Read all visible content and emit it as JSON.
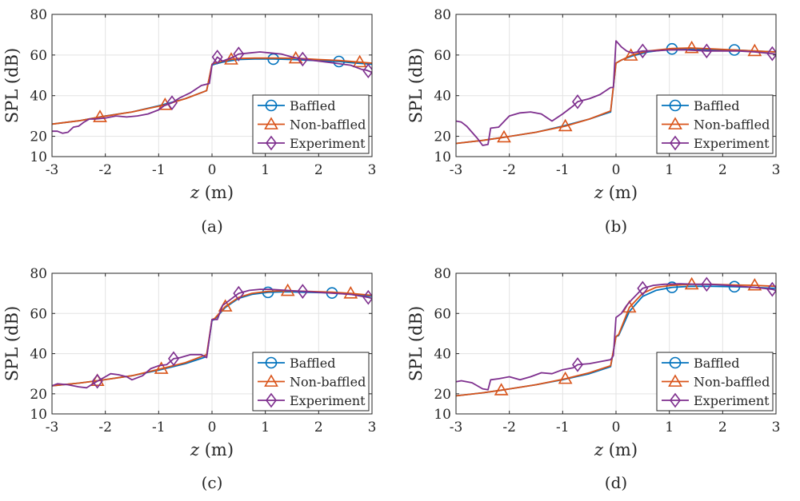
{
  "figure": {
    "series_colors": {
      "Baffled": "#0072bd",
      "Non-baffled": "#d95319",
      "Experiment": "#7e2f8e"
    },
    "markers": {
      "Baffled": "circle",
      "Non-baffled": "triangle",
      "Experiment": "diamond"
    }
  },
  "chart_data": [
    {
      "type": "line",
      "caption": "(a)",
      "xlabel": "z (m)",
      "ylabel": "SPL (dB)",
      "xlim": [
        -3,
        3
      ],
      "ylim": [
        10,
        80
      ],
      "xticks": [
        -3,
        -2,
        -1,
        0,
        1,
        2,
        3
      ],
      "yticks": [
        10,
        20,
        40,
        60,
        80
      ],
      "grid": true,
      "legend": "bottom-right",
      "series": [
        {
          "name": "Baffled",
          "x": [
            -3,
            -2.5,
            -2,
            -1.5,
            -1,
            -0.5,
            -0.1,
            0,
            0.05,
            0.2,
            0.35,
            0.5,
            0.8,
            1.15,
            1.5,
            2,
            2.38,
            2.7,
            3
          ],
          "y": [
            26,
            27.6,
            30,
            32,
            35,
            38.5,
            42.5,
            55,
            55.5,
            56.5,
            57.2,
            57.8,
            58,
            58,
            57.8,
            57.2,
            56.8,
            56,
            55.5
          ],
          "markers_x": [
            1.15,
            2.38
          ]
        },
        {
          "name": "Non-baffled",
          "x": [
            -3,
            -2.5,
            -2.1,
            -1.5,
            -0.88,
            -0.5,
            -0.1,
            0,
            0.05,
            0.2,
            0.35,
            0.5,
            0.8,
            1.15,
            1.57,
            2,
            2.38,
            2.77,
            3
          ],
          "y": [
            26,
            27.6,
            29.5,
            32,
            35.5,
            38.5,
            42.5,
            55.5,
            56,
            57,
            57.8,
            58.3,
            58.5,
            58.5,
            58.4,
            57.8,
            57.3,
            56.5,
            56
          ],
          "markers_x": [
            -2.1,
            -0.88,
            0.36,
            1.57,
            2.77
          ]
        },
        {
          "name": "Experiment",
          "x": [
            -3,
            -2.9,
            -2.8,
            -2.7,
            -2.6,
            -2.5,
            -2.4,
            -2.3,
            -2.2,
            -2,
            -1.8,
            -1.6,
            -1.4,
            -1.2,
            -1,
            -0.9,
            -0.75,
            -0.6,
            -0.4,
            -0.2,
            -0.05,
            0,
            0.1,
            0.2,
            0.3,
            0.4,
            0.5,
            0.7,
            0.9,
            1.1,
            1.3,
            1.5,
            1.7,
            2,
            2.3,
            2.6,
            2.8,
            2.9,
            3
          ],
          "y": [
            22.5,
            22.5,
            21.5,
            22,
            24.5,
            25,
            27,
            28.5,
            28.5,
            29,
            30,
            29.5,
            30,
            31,
            33,
            35,
            36.5,
            39,
            41.5,
            45,
            46,
            55,
            59,
            57,
            58,
            59,
            60.5,
            61,
            61.5,
            61,
            60.5,
            59,
            58,
            57,
            56,
            55,
            53,
            52.5,
            51.5
          ],
          "markers_x": [
            -0.75,
            0.1,
            0.5,
            1.7,
            2.93
          ]
        }
      ]
    },
    {
      "type": "line",
      "caption": "(b)",
      "xlabel": "z (m)",
      "ylabel": "SPL (dB)",
      "xlim": [
        -3,
        3
      ],
      "ylim": [
        10,
        80
      ],
      "xticks": [
        -3,
        -2,
        -1,
        0,
        1,
        2,
        3
      ],
      "yticks": [
        10,
        20,
        40,
        60,
        80
      ],
      "grid": true,
      "legend": "bottom-right",
      "series": [
        {
          "name": "Baffled",
          "x": [
            -3,
            -2.5,
            -2.1,
            -1.5,
            -1,
            -0.5,
            -0.1,
            0,
            0.1,
            0.3,
            0.6,
            1.05,
            1.4,
            1.8,
            2.22,
            2.6,
            3
          ],
          "y": [
            16.5,
            18,
            19.5,
            22,
            25,
            28.5,
            32,
            56,
            57.5,
            59.5,
            61.5,
            63,
            63,
            62.5,
            62.5,
            62,
            61.5
          ],
          "markers_x": [
            1.05,
            2.22
          ]
        },
        {
          "name": "Non-baffled",
          "x": [
            -3,
            -2.5,
            -2.1,
            -1.5,
            -0.95,
            -0.5,
            -0.1,
            0,
            0.1,
            0.3,
            0.6,
            1.05,
            1.4,
            1.8,
            2.22,
            2.6,
            3
          ],
          "y": [
            16.5,
            18,
            19.5,
            22,
            25,
            28.5,
            32.5,
            56,
            57.5,
            60,
            62,
            63.2,
            63.5,
            63,
            62.5,
            62,
            61.5
          ],
          "markers_x": [
            -2.1,
            -0.95,
            0.28,
            1.42,
            2.6
          ]
        },
        {
          "name": "Experiment",
          "x": [
            -3,
            -2.9,
            -2.8,
            -2.7,
            -2.6,
            -2.5,
            -2.4,
            -2.35,
            -2.2,
            -2,
            -1.8,
            -1.6,
            -1.4,
            -1.2,
            -1,
            -0.8,
            -0.72,
            -0.5,
            -0.3,
            -0.1,
            -0.05,
            0,
            0.1,
            0.2,
            0.3,
            0.5,
            0.7,
            1,
            1.3,
            1.7,
            2,
            2.3,
            2.6,
            3
          ],
          "y": [
            27.5,
            27,
            25,
            22,
            19,
            15.5,
            16,
            24,
            24.5,
            30,
            31.5,
            32,
            31,
            27.5,
            31,
            35,
            37,
            38.5,
            40.5,
            44,
            44,
            67,
            64,
            62,
            61,
            62,
            62,
            62.5,
            62.5,
            62,
            62,
            62,
            61.5,
            60.5
          ],
          "markers_x": [
            -0.72,
            0.5,
            1.7,
            2.93
          ]
        }
      ]
    },
    {
      "type": "line",
      "caption": "(c)",
      "xlabel": "z (m)",
      "ylabel": "SPL (dB)",
      "xlim": [
        -3,
        3
      ],
      "ylim": [
        10,
        80
      ],
      "xticks": [
        -3,
        -2,
        -1,
        0,
        1,
        2,
        3
      ],
      "yticks": [
        10,
        20,
        40,
        60,
        80
      ],
      "grid": true,
      "legend": "bottom-right",
      "series": [
        {
          "name": "Baffled",
          "x": [
            -3,
            -2.5,
            -2.15,
            -1.5,
            -1,
            -0.5,
            -0.1,
            0,
            0.05,
            0.25,
            0.5,
            0.75,
            1.05,
            1.4,
            1.8,
            2.25,
            2.6,
            3
          ],
          "y": [
            24,
            25.3,
            26.5,
            29,
            31.8,
            35,
            38.5,
            56.5,
            57,
            63,
            67.5,
            69.5,
            70.5,
            70.8,
            70.5,
            70.2,
            69.5,
            68.5
          ],
          "markers_x": [
            1.05,
            2.25
          ]
        },
        {
          "name": "Non-baffled",
          "x": [
            -3,
            -2.5,
            -2.15,
            -1.5,
            -0.95,
            -0.5,
            -0.1,
            0,
            0.05,
            0.25,
            0.5,
            0.75,
            1.05,
            1.4,
            1.8,
            2.25,
            2.6,
            3
          ],
          "y": [
            24,
            25.3,
            26.5,
            29,
            32.5,
            35.5,
            39.5,
            57,
            57.5,
            63.5,
            68,
            70,
            71,
            71.3,
            71,
            70.6,
            70,
            69
          ],
          "markers_x": [
            -2.15,
            -0.95,
            0.25,
            1.42,
            2.6
          ]
        },
        {
          "name": "Experiment",
          "x": [
            -3,
            -2.9,
            -2.7,
            -2.5,
            -2.35,
            -2.2,
            -2,
            -1.9,
            -1.75,
            -1.6,
            -1.5,
            -1.3,
            -1.15,
            -1,
            -0.85,
            -0.72,
            -0.6,
            -0.4,
            -0.2,
            -0.1,
            0,
            0.1,
            0.2,
            0.3,
            0.5,
            0.7,
            0.9,
            1.1,
            1.4,
            1.7,
            2,
            2.3,
            2.6,
            2.93,
            3
          ],
          "y": [
            24,
            25,
            24.5,
            23.5,
            23,
            25.5,
            28.5,
            30,
            29.5,
            28.5,
            27,
            29,
            32.5,
            34,
            34.5,
            37.5,
            38,
            39.5,
            39.5,
            38,
            57,
            57,
            64,
            66,
            70,
            71.5,
            72,
            72,
            71.5,
            71,
            70.5,
            70,
            69.5,
            68,
            67.5
          ],
          "markers_x": [
            -2.15,
            -0.72,
            0.5,
            1.7,
            2.93
          ]
        }
      ]
    },
    {
      "type": "line",
      "caption": "(d)",
      "xlabel": "z (m)",
      "ylabel": "SPL (dB)",
      "xlim": [
        -3,
        3
      ],
      "ylim": [
        10,
        80
      ],
      "xticks": [
        -3,
        -2,
        -1,
        0,
        1,
        2,
        3
      ],
      "yticks": [
        10,
        20,
        40,
        60,
        80
      ],
      "grid": true,
      "legend": "bottom-right",
      "series": [
        {
          "name": "Baffled",
          "x": [
            -3,
            -2.5,
            -2.15,
            -1.5,
            -1,
            -0.5,
            -0.1,
            0,
            0.05,
            0.25,
            0.5,
            0.75,
            1.05,
            1.4,
            1.8,
            2.22,
            2.6,
            3
          ],
          "y": [
            19,
            20.5,
            21.8,
            24.5,
            27,
            30,
            33.5,
            48.5,
            49,
            61,
            68.5,
            71.5,
            73,
            73.5,
            73.5,
            73.3,
            73,
            72.5
          ],
          "markers_x": [
            1.05,
            2.22
          ]
        },
        {
          "name": "Non-baffled",
          "x": [
            -3,
            -2.5,
            -2.15,
            -1.5,
            -0.95,
            -0.5,
            -0.1,
            0,
            0.05,
            0.25,
            0.5,
            0.75,
            1.05,
            1.42,
            1.8,
            2.22,
            2.6,
            3
          ],
          "y": [
            19,
            20.5,
            21.8,
            24.5,
            27.5,
            30.5,
            34,
            48.5,
            49.5,
            63,
            70,
            73,
            74,
            74.5,
            74.5,
            74.2,
            74,
            73.5
          ],
          "markers_x": [
            -2.15,
            -0.95,
            0.25,
            1.42,
            2.6
          ]
        },
        {
          "name": "Experiment",
          "x": [
            -3,
            -2.9,
            -2.7,
            -2.5,
            -2.4,
            -2.35,
            -2.2,
            -2,
            -1.8,
            -1.6,
            -1.4,
            -1.2,
            -1,
            -0.8,
            -0.72,
            -0.5,
            -0.3,
            -0.1,
            -0.05,
            0,
            0.1,
            0.2,
            0.3,
            0.5,
            0.7,
            0.9,
            1.2,
            1.5,
            1.7,
            2,
            2.3,
            2.6,
            2.93,
            3
          ],
          "y": [
            26,
            26.5,
            25.5,
            22.5,
            22,
            27,
            27.5,
            28.5,
            27,
            28.5,
            30.5,
            30,
            32,
            33,
            34.5,
            35,
            36,
            37,
            39,
            58,
            60,
            64,
            67,
            72.5,
            74,
            74.5,
            74.8,
            74.5,
            74.5,
            74.2,
            73.5,
            73,
            72,
            71.5
          ],
          "markers_x": [
            -0.72,
            0.5,
            1.7,
            2.93
          ]
        }
      ]
    }
  ]
}
